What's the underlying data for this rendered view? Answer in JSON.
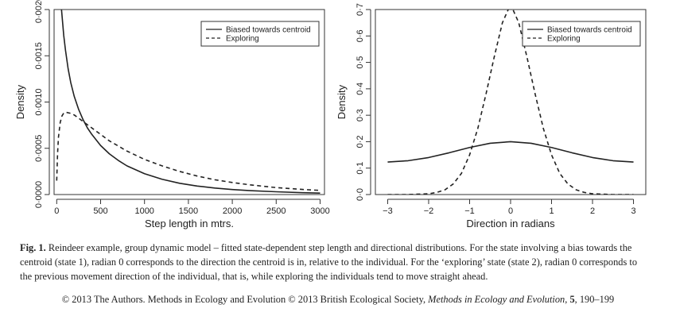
{
  "chart_data": [
    {
      "type": "line",
      "xlabel": "Step length in mtrs.",
      "ylabel": "Density",
      "xlim": [
        -30,
        3050
      ],
      "ylim": [
        0,
        0.002
      ],
      "xticks": [
        0,
        500,
        1000,
        1500,
        2000,
        2500,
        3000
      ],
      "yticks": [
        "0·0000",
        "0·0005",
        "0·0010",
        "0·0015",
        "0·0020"
      ],
      "ytick_values": [
        0,
        0.0005,
        0.001,
        0.0015,
        0.002
      ],
      "legend": {
        "position": "top-right",
        "entries": [
          "Biased towards centroid",
          "Exploring"
        ]
      },
      "series": [
        {
          "name": "Biased towards centroid",
          "style": "solid",
          "x": [
            50,
            80,
            100,
            130,
            160,
            200,
            250,
            300,
            350,
            400,
            500,
            600,
            700,
            800,
            1000,
            1200,
            1400,
            1600,
            1800,
            2000,
            2200,
            2500,
            2800,
            3000
          ],
          "y": [
            0.00205,
            0.00172,
            0.00156,
            0.00136,
            0.00121,
            0.00106,
            0.00092,
            0.00081,
            0.00072,
            0.00065,
            0.00053,
            0.00044,
            0.00037,
            0.00031,
            0.000225,
            0.000165,
            0.000122,
            9.2e-05,
            7e-05,
            5.4e-05,
            4.2e-05,
            3e-05,
            2e-05,
            1.6e-05
          ]
        },
        {
          "name": "Exploring",
          "style": "dashed",
          "x": [
            0,
            10,
            20,
            40,
            60,
            80,
            100,
            150,
            200,
            300,
            400,
            500,
            600,
            800,
            1000,
            1200,
            1400,
            1600,
            1800,
            2000,
            2200,
            2500,
            2800,
            3000
          ],
          "y": [
            0.00015,
            0.00045,
            0.00062,
            0.00078,
            0.00085,
            0.00088,
            0.00089,
            0.00088,
            0.00086,
            0.00079,
            0.00072,
            0.00065,
            0.00058,
            0.00047,
            0.00038,
            0.00031,
            0.00025,
            0.0002,
            0.00016,
            0.00013,
            0.000105,
            7.5e-05,
            5.5e-05,
            4.5e-05
          ]
        }
      ]
    },
    {
      "type": "line",
      "xlabel": "Direction in radians",
      "ylabel": "Density",
      "xlim": [
        -3.3,
        3.3
      ],
      "ylim": [
        0,
        0.7
      ],
      "xticks": [
        -3,
        -2,
        -1,
        0,
        1,
        2,
        3
      ],
      "yticks": [
        "0·0",
        "0·1",
        "0·2",
        "0·3",
        "0·4",
        "0·5",
        "0·6",
        "0·7"
      ],
      "ytick_values": [
        0,
        0.1,
        0.2,
        0.3,
        0.4,
        0.5,
        0.6,
        0.7
      ],
      "legend": {
        "position": "top-right",
        "entries": [
          "Biased towards centroid",
          "Exploring"
        ]
      },
      "series": [
        {
          "name": "Biased towards centroid",
          "style": "solid",
          "x": [
            -3.0,
            -2.5,
            -2.0,
            -1.5,
            -1.0,
            -0.5,
            0,
            0.5,
            1.0,
            1.5,
            2.0,
            2.5,
            3.0
          ],
          "y": [
            0.123,
            0.128,
            0.14,
            0.158,
            0.178,
            0.194,
            0.2,
            0.194,
            0.178,
            0.158,
            0.14,
            0.128,
            0.123
          ]
        },
        {
          "name": "Exploring",
          "style": "dashed",
          "x": [
            -3.0,
            -2.5,
            -2.0,
            -1.8,
            -1.6,
            -1.4,
            -1.2,
            -1.0,
            -0.8,
            -0.6,
            -0.4,
            -0.2,
            0,
            0.2,
            0.4,
            0.6,
            0.8,
            1.0,
            1.2,
            1.4,
            1.6,
            1.8,
            2.0,
            2.5,
            3.0
          ],
          "y": [
            0.0,
            0.0,
            0.003,
            0.008,
            0.018,
            0.04,
            0.08,
            0.15,
            0.25,
            0.38,
            0.52,
            0.65,
            0.72,
            0.65,
            0.52,
            0.38,
            0.25,
            0.15,
            0.08,
            0.04,
            0.018,
            0.008,
            0.003,
            0.0,
            0.0
          ]
        }
      ]
    }
  ],
  "caption": {
    "fig_label": "Fig. 1.",
    "text": "Reindeer example, group dynamic model – fitted state-dependent step length and directional distributions. For the state involving a bias towards the centroid (state 1), radian 0 corresponds to the direction the centroid is in, relative to the individual. For the ‘exploring’ state (state 2), radian 0 corresponds to the previous movement direction of the individual, that is, while exploring the individuals tend to move straight ahead."
  },
  "footer": {
    "text_before": "© 2013 The Authors. Methods in Ecology and Evolution © 2013 British Ecological Society,",
    "journal": "Methods in Ecology and Evolution",
    "volume": "5",
    "pages": "190–199"
  }
}
